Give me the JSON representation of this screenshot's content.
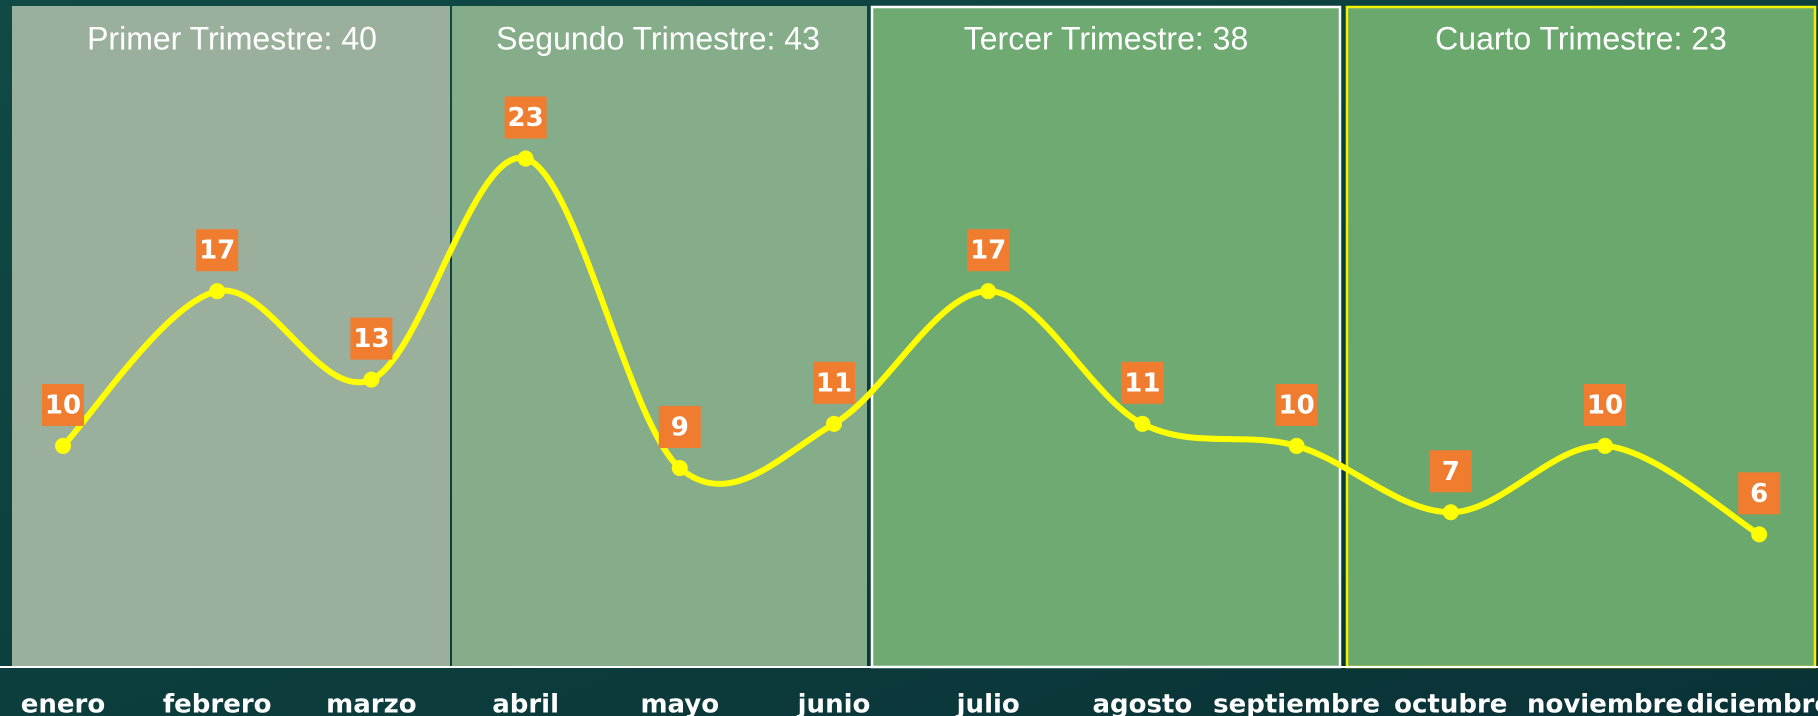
{
  "chart_data": {
    "type": "line",
    "categories": [
      "enero",
      "febrero",
      "marzo",
      "abril",
      "mayo",
      "junio",
      "julio",
      "agosto",
      "septiembre",
      "octubre",
      "noviembre",
      "diciembre"
    ],
    "values": [
      10,
      17,
      13,
      23,
      9,
      11,
      17,
      11,
      10,
      7,
      10,
      6
    ],
    "color": "#ffff00",
    "label_color": "#f07c30",
    "annotations": [
      "Primer Trimestre: 40",
      "Segundo Trimestre: 43",
      "Tercer Trimestre: 38",
      "Cuarto Trimestre: 23"
    ]
  }
}
